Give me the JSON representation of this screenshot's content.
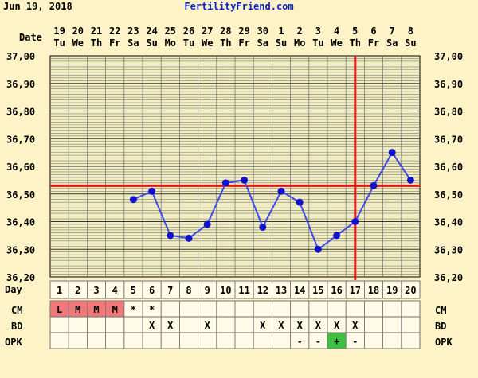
{
  "header": {
    "date": "Jun 19, 2018",
    "site": "FertilityFriend.com"
  },
  "labels": {
    "date_row": "Date",
    "day_row": "Day",
    "cm_row": "CM",
    "bd_row": "BD",
    "opk_row": "OPK"
  },
  "colors": {
    "background": "#fdf3c6",
    "plot_bg": "#f2eec0",
    "grid": "#7b7b7b",
    "line": "#3d49e6",
    "point": "#1212cc",
    "coverline": "#e21414",
    "period_cell": "#f07878",
    "opk_positive": "#3fbf3f",
    "link": "#0b1fc9"
  },
  "chart_data": {
    "type": "line",
    "ylim": [
      36.2,
      37.0
    ],
    "y_ticks": [
      "37,00",
      "36,90",
      "36,80",
      "36,70",
      "36,60",
      "36,50",
      "36,40",
      "36,30",
      "36,20"
    ],
    "dates": [
      "19",
      "20",
      "21",
      "22",
      "23",
      "24",
      "25",
      "26",
      "27",
      "28",
      "29",
      "30",
      "1",
      "2",
      "3",
      "4",
      "5",
      "6",
      "7",
      "8"
    ],
    "weekdays": [
      "Tu",
      "We",
      "Th",
      "Fr",
      "Sa",
      "Su",
      "Mo",
      "Tu",
      "We",
      "Th",
      "Fr",
      "Sa",
      "Su",
      "Mo",
      "Tu",
      "We",
      "Th",
      "Fr",
      "Sa",
      "Su"
    ],
    "days": [
      "1",
      "2",
      "3",
      "4",
      "5",
      "6",
      "7",
      "8",
      "9",
      "10",
      "11",
      "12",
      "13",
      "14",
      "15",
      "16",
      "17",
      "18",
      "19",
      "20"
    ],
    "temperatures": [
      null,
      null,
      null,
      null,
      36.48,
      36.51,
      36.35,
      36.34,
      36.39,
      36.54,
      36.55,
      36.38,
      36.51,
      36.47,
      36.3,
      36.35,
      36.4,
      36.53,
      36.65,
      36.55
    ],
    "coverline": 36.53,
    "ovulation_day": 17,
    "cm": [
      "L",
      "M",
      "M",
      "M",
      "*",
      "*",
      "",
      "",
      "",
      "",
      "",
      "",
      "",
      "",
      "",
      "",
      "",
      "",
      "",
      ""
    ],
    "bd": [
      "",
      "",
      "",
      "",
      "",
      "X",
      "X",
      "",
      "X",
      "",
      "",
      "X",
      "X",
      "X",
      "X",
      "X",
      "X",
      "",
      "",
      ""
    ],
    "opk": [
      "",
      "",
      "",
      "",
      "",
      "",
      "",
      "",
      "",
      "",
      "",
      "",
      "",
      "-",
      "-",
      "+",
      "-",
      "",
      "",
      ""
    ],
    "period_days": [
      1,
      2,
      3,
      4
    ]
  }
}
